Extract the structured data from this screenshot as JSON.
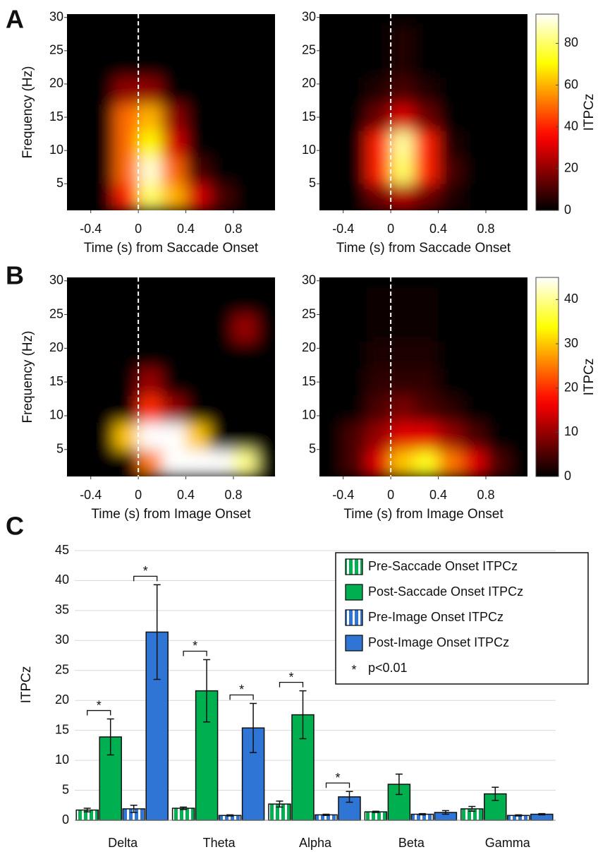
{
  "chart_data": [
    {
      "type": "heatmap",
      "panel_label": "A",
      "x": [
        -0.5,
        -0.3,
        -0.1,
        0.1,
        0.3,
        0.5,
        0.7,
        0.9,
        1.1
      ],
      "y": [
        3,
        7,
        11,
        15,
        19,
        23,
        27
      ],
      "z": [
        [
          0,
          0,
          40,
          80,
          60,
          30,
          10,
          0,
          0
        ],
        [
          0,
          0,
          50,
          90,
          50,
          10,
          0,
          0,
          0
        ],
        [
          0,
          0,
          50,
          70,
          30,
          0,
          0,
          0,
          0
        ],
        [
          0,
          0,
          50,
          60,
          20,
          0,
          0,
          0,
          0
        ],
        [
          0,
          0,
          20,
          20,
          0,
          0,
          0,
          0,
          0
        ],
        [
          0,
          0,
          0,
          0,
          0,
          0,
          0,
          0,
          0
        ],
        [
          0,
          0,
          0,
          0,
          0,
          0,
          0,
          0,
          0
        ]
      ],
      "zlim": [
        0,
        94
      ],
      "reference_line_x": 0,
      "xlim": [
        -0.6,
        1.15
      ],
      "ylim": [
        1,
        30.5
      ],
      "xticks": [
        -0.4,
        0,
        0.4,
        0.8
      ],
      "yticks": [
        5,
        10,
        15,
        20,
        25,
        30
      ],
      "xlabel": "Time (s) from Saccade Onset",
      "ylabel": "Frequency (Hz)"
    },
    {
      "type": "heatmap",
      "x": [
        -0.5,
        -0.3,
        -0.1,
        0.1,
        0.3,
        0.5,
        0.7,
        0.9,
        1.1
      ],
      "y": [
        3,
        7,
        11,
        15,
        19,
        23,
        27
      ],
      "z": [
        [
          0,
          0,
          15,
          25,
          15,
          5,
          0,
          0,
          0
        ],
        [
          0,
          0,
          40,
          80,
          40,
          10,
          0,
          0,
          0
        ],
        [
          0,
          0,
          40,
          85,
          40,
          5,
          0,
          0,
          0
        ],
        [
          0,
          0,
          15,
          30,
          15,
          0,
          0,
          0,
          0
        ],
        [
          0,
          0,
          5,
          10,
          5,
          0,
          0,
          0,
          0
        ],
        [
          0,
          0,
          0,
          5,
          0,
          0,
          0,
          0,
          0
        ],
        [
          0,
          0,
          0,
          5,
          0,
          0,
          0,
          0,
          0
        ]
      ],
      "zlim": [
        0,
        94
      ],
      "reference_line_x": 0,
      "xlim": [
        -0.6,
        1.15
      ],
      "ylim": [
        1,
        30.5
      ],
      "xticks": [
        -0.4,
        0,
        0.4,
        0.8
      ],
      "yticks": [
        5,
        10,
        15,
        20,
        25,
        30
      ],
      "xlabel": "Time (s) from Saccade Onset",
      "colorbar": {
        "label": "ITPCz",
        "lim": [
          0,
          94
        ],
        "ticks": [
          0,
          20,
          40,
          60,
          80
        ]
      }
    },
    {
      "type": "heatmap",
      "panel_label": "B",
      "x": [
        -0.5,
        -0.3,
        -0.1,
        0.1,
        0.3,
        0.5,
        0.7,
        0.9,
        1.1
      ],
      "y": [
        3,
        7,
        11,
        15,
        19,
        23,
        27
      ],
      "z": [
        [
          0,
          0,
          0,
          25,
          45,
          45,
          45,
          40,
          0
        ],
        [
          0,
          0,
          30,
          45,
          45,
          30,
          0,
          0,
          0
        ],
        [
          0,
          0,
          0,
          20,
          10,
          0,
          0,
          0,
          0
        ],
        [
          0,
          0,
          0,
          10,
          0,
          0,
          0,
          0,
          0
        ],
        [
          0,
          0,
          0,
          0,
          0,
          0,
          0,
          0,
          0
        ],
        [
          0,
          0,
          0,
          0,
          0,
          0,
          0,
          10,
          0
        ],
        [
          0,
          0,
          0,
          0,
          0,
          0,
          0,
          0,
          0
        ]
      ],
      "zlim": [
        0,
        45
      ],
      "reference_line_x": 0,
      "xlim": [
        -0.6,
        1.15
      ],
      "ylim": [
        1,
        30.5
      ],
      "xticks": [
        -0.4,
        0,
        0.4,
        0.8
      ],
      "yticks": [
        5,
        10,
        15,
        20,
        25,
        30
      ],
      "xlabel": "Time (s) from Image Onset",
      "ylabel": "Frequency (Hz)"
    },
    {
      "type": "heatmap",
      "x": [
        -0.5,
        -0.3,
        -0.1,
        0.1,
        0.3,
        0.5,
        0.7,
        0.9,
        1.1
      ],
      "y": [
        3,
        7,
        11,
        15,
        19,
        23,
        27
      ],
      "z": [
        [
          0,
          5,
          15,
          30,
          35,
          25,
          15,
          5,
          0
        ],
        [
          0,
          5,
          10,
          15,
          15,
          10,
          5,
          0,
          0
        ],
        [
          0,
          0,
          5,
          8,
          5,
          3,
          0,
          0,
          0
        ],
        [
          0,
          0,
          3,
          3,
          3,
          0,
          0,
          0,
          0
        ],
        [
          0,
          0,
          2,
          2,
          2,
          0,
          0,
          0,
          0
        ],
        [
          0,
          0,
          1,
          1,
          1,
          0,
          0,
          0,
          0
        ],
        [
          0,
          0,
          1,
          1,
          1,
          0,
          0,
          0,
          0
        ]
      ],
      "zlim": [
        0,
        45
      ],
      "reference_line_x": 0,
      "xlim": [
        -0.6,
        1.15
      ],
      "ylim": [
        1,
        30.5
      ],
      "xticks": [
        -0.4,
        0,
        0.4,
        0.8
      ],
      "yticks": [
        5,
        10,
        15,
        20,
        25,
        30
      ],
      "xlabel": "Time (s) from Image Onset",
      "colorbar": {
        "label": "ITPCz",
        "lim": [
          0,
          45
        ],
        "ticks": [
          0,
          10,
          20,
          30,
          40
        ]
      }
    },
    {
      "type": "bar",
      "panel_label": "C",
      "categories": [
        "Delta",
        "Theta",
        "Alpha",
        "Beta",
        "Gamma"
      ],
      "series": [
        {
          "name": "Pre-Saccade Onset ITPCz",
          "color": "#00b050",
          "hatch": true,
          "values": [
            1.7,
            2.0,
            2.7,
            1.4,
            1.9
          ],
          "errors": [
            0.3,
            0.2,
            0.5,
            0.1,
            0.4
          ]
        },
        {
          "name": "Post-Saccade Onset ITPCz",
          "color": "#00b050",
          "hatch": false,
          "values": [
            13.9,
            21.6,
            17.6,
            6.0,
            4.4
          ],
          "errors": [
            3.0,
            5.2,
            4.0,
            1.7,
            1.1
          ]
        },
        {
          "name": "Pre-Image Onset ITPCz",
          "color": "#2e75d6",
          "hatch": true,
          "values": [
            1.9,
            0.8,
            0.9,
            1.0,
            0.8
          ],
          "errors": [
            0.6,
            0.1,
            0.1,
            0.1,
            0.1
          ]
        },
        {
          "name": "Post-Image Onset ITPCz",
          "color": "#2e75d6",
          "hatch": false,
          "values": [
            31.4,
            15.4,
            3.9,
            1.3,
            1.0
          ],
          "errors": [
            7.9,
            4.1,
            0.9,
            0.3,
            0.1
          ]
        }
      ],
      "significance": [
        {
          "text": "*",
          "category": 0,
          "series": [
            0,
            1
          ]
        },
        {
          "text": "*",
          "category": 0,
          "series": [
            2,
            3
          ]
        },
        {
          "text": "*",
          "category": 1,
          "series": [
            0,
            1
          ]
        },
        {
          "text": "*",
          "category": 1,
          "series": [
            2,
            3
          ]
        },
        {
          "text": "*",
          "category": 2,
          "series": [
            0,
            1
          ]
        },
        {
          "text": "*",
          "category": 2,
          "series": [
            2,
            3
          ]
        }
      ],
      "significance_legend": {
        "marker": "*",
        "label": "p<0.01"
      },
      "ylim": [
        0,
        45
      ],
      "yticks": [
        0,
        5,
        10,
        15,
        20,
        25,
        30,
        35,
        40,
        45
      ],
      "ylabel": "ITPCz",
      "grid": true,
      "legend": "upper right"
    }
  ]
}
